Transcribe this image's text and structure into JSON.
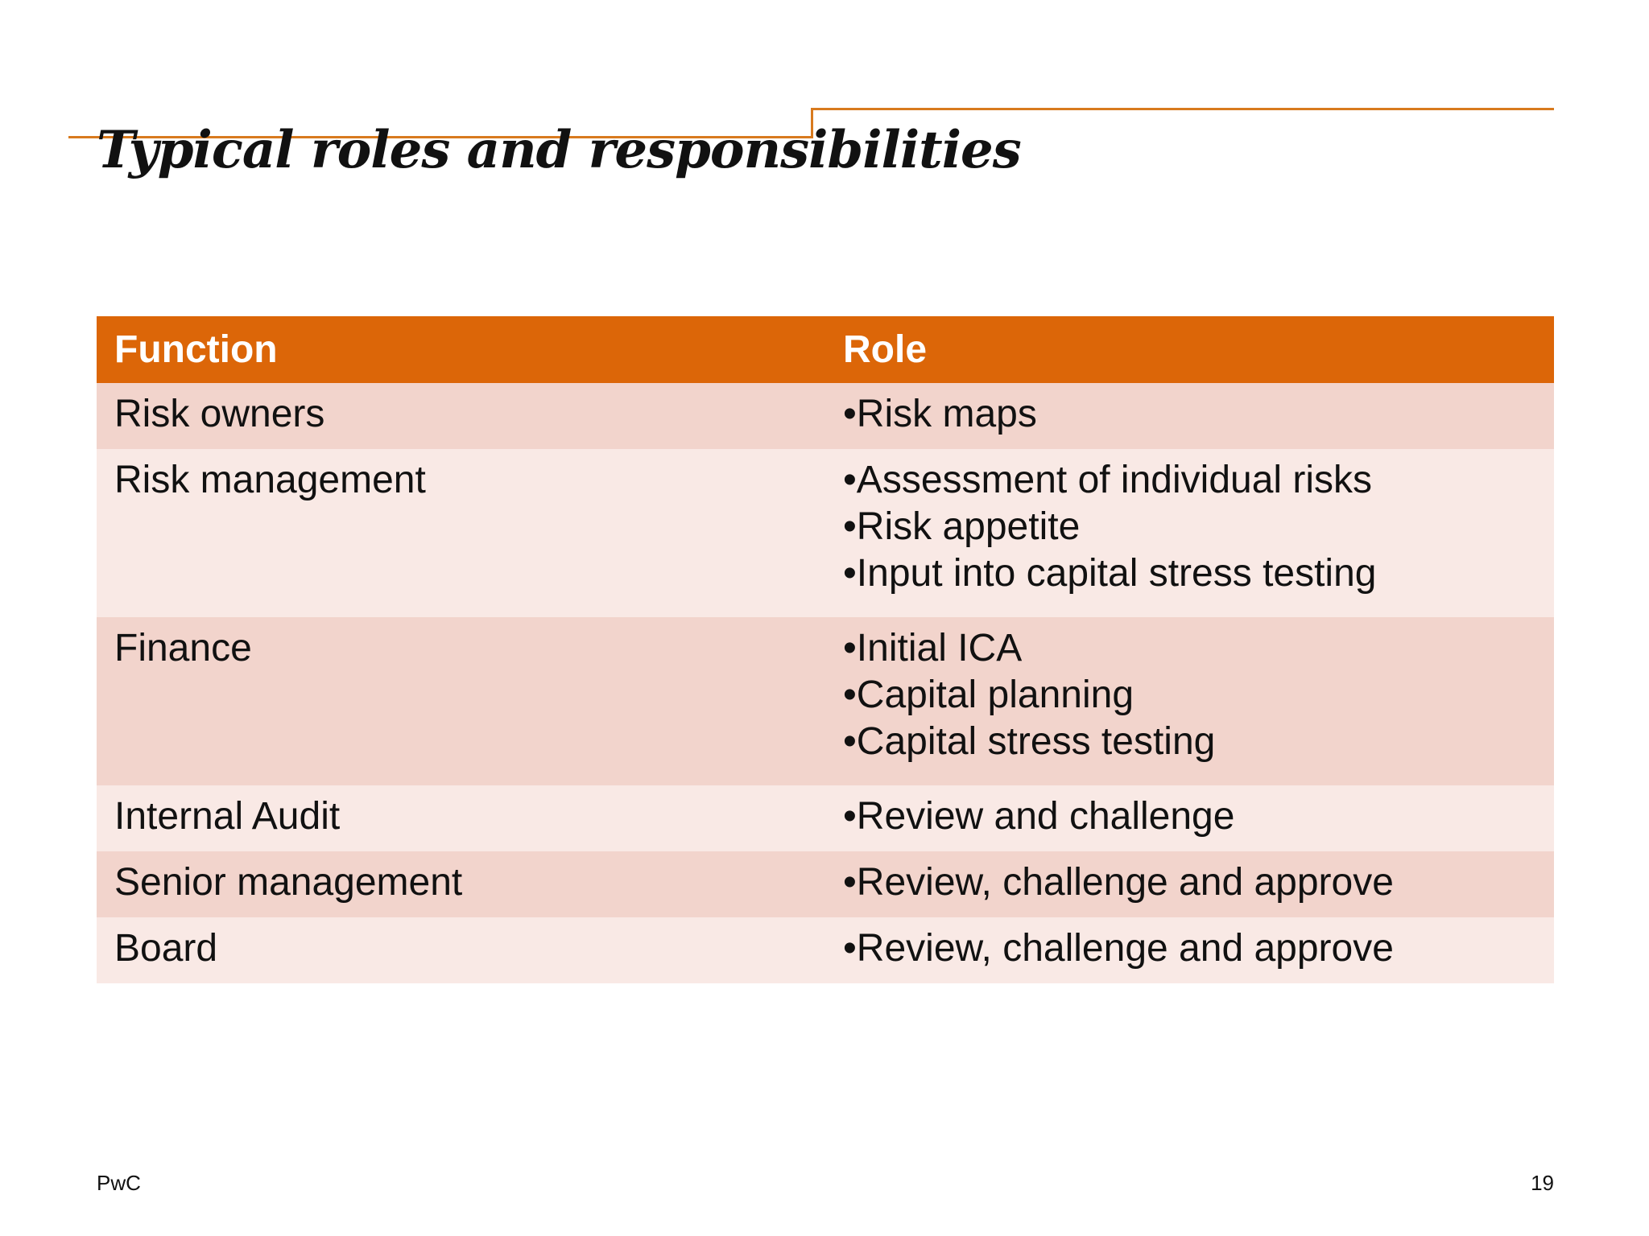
{
  "slide": {
    "title": "Typical roles and responsibilities",
    "accent_color": "#dc6608",
    "rule_color": "#d87a1e",
    "row_colors": [
      "#f2d4cc",
      "#f9e9e5"
    ]
  },
  "table": {
    "headers": [
      "Function",
      "Role"
    ],
    "rows": [
      {
        "function": "Risk owners",
        "roles": [
          "•Risk maps"
        ]
      },
      {
        "function": "Risk management",
        "roles": [
          "•Assessment of individual risks",
          "•Risk appetite",
          "•Input into capital stress testing"
        ]
      },
      {
        "function": "Finance",
        "roles": [
          "•Initial ICA",
          "•Capital planning",
          "•Capital stress testing"
        ]
      },
      {
        "function": "Internal Audit",
        "roles": [
          "•Review and challenge"
        ]
      },
      {
        "function": "Senior management",
        "roles": [
          "•Review, challenge and approve"
        ]
      },
      {
        "function": "Board",
        "roles": [
          "•Review, challenge and approve"
        ]
      }
    ]
  },
  "footer": {
    "brand": "PwC",
    "page_number": "19"
  }
}
